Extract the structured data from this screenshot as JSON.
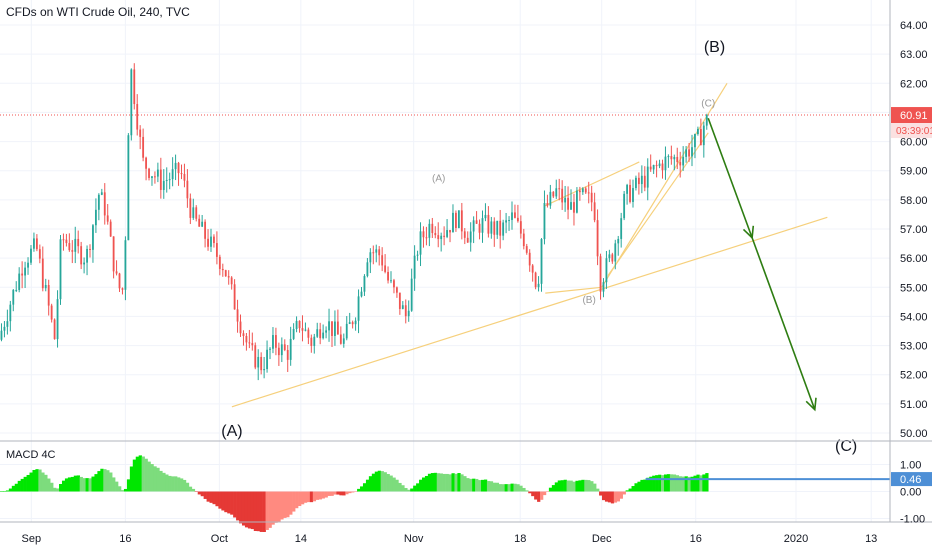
{
  "header": {
    "title": "CFDs on WTI Crude Oil, 240, TVC"
  },
  "macd": {
    "title": "MACD 4C",
    "value_label": "0.46",
    "axis_ticks": [
      "1.00",
      "0.00",
      "-1.00"
    ],
    "axis_values": [
      1.0,
      0.0,
      -1.0
    ],
    "value": 0.46
  },
  "price_axis": {
    "ticks": [
      "64.00",
      "63.00",
      "62.00",
      "61.00",
      "60.00",
      "59.00",
      "58.00",
      "57.00",
      "56.00",
      "55.00",
      "54.00",
      "53.00",
      "52.00",
      "51.00",
      "50.00"
    ],
    "last_price": "60.91",
    "countdown": "03:39:01"
  },
  "time_axis": {
    "labels": [
      "Sep",
      "16",
      "Oct",
      "14",
      "Nov",
      "18",
      "Dec",
      "16",
      "2020",
      "13"
    ]
  },
  "annotations": {
    "big_a": "(A)",
    "big_b": "(B)",
    "big_c": "(C)",
    "small_a": "(A)",
    "small_b": "(B)",
    "small_c": "(C)"
  },
  "colors": {
    "up": "#26a69a",
    "down": "#ef5350",
    "trendline": "#f6d07c",
    "arrow": "#2e7d12",
    "price_line": "#ef5350",
    "macd_up": "#00e600",
    "macd_down": "#e53935",
    "macd_level": "#4d8fd6",
    "axis_text": "#131722"
  },
  "chart_data": {
    "type": "candlestick",
    "title": "CFDs on WTI Crude Oil, 240, TVC",
    "y_axis": {
      "min": 50.0,
      "max": 64.0,
      "unit": "USD"
    },
    "x_axis": {
      "start": "2019-08-27",
      "end": "2020-01-16",
      "labels": [
        "Sep",
        "16",
        "Oct",
        "14",
        "Nov",
        "18",
        "Dec",
        "16",
        "2020",
        "13"
      ]
    },
    "price_path": [
      [
        "2019-08-27",
        53.2
      ],
      [
        "2019-08-31",
        55.9
      ],
      [
        "2019-09-02",
        56.4
      ],
      [
        "2019-09-04",
        54.3
      ],
      [
        "2019-09-05",
        53.2
      ],
      [
        "2019-09-06",
        56.7
      ],
      [
        "2019-09-10",
        56.0
      ],
      [
        "2019-09-12",
        58.2
      ],
      [
        "2019-09-13",
        57.7
      ],
      [
        "2019-09-15",
        55.0
      ],
      [
        "2019-09-16",
        54.9
      ],
      [
        "2019-09-17",
        62.7
      ],
      [
        "2019-09-18",
        61.0
      ],
      [
        "2019-09-19",
        59.3
      ],
      [
        "2019-09-22",
        58.6
      ],
      [
        "2019-09-25",
        59.0
      ],
      [
        "2019-09-27",
        57.4
      ],
      [
        "2019-09-30",
        56.4
      ],
      [
        "2019-10-02",
        55.7
      ],
      [
        "2019-10-04",
        54.2
      ],
      [
        "2019-10-06",
        52.8
      ],
      [
        "2019-10-08",
        52.3
      ],
      [
        "2019-10-10",
        53.1
      ],
      [
        "2019-10-12",
        52.7
      ],
      [
        "2019-10-14",
        53.8
      ],
      [
        "2019-10-16",
        53.1
      ],
      [
        "2019-10-18",
        53.9
      ],
      [
        "2019-10-21",
        53.1
      ],
      [
        "2019-10-23",
        54.2
      ],
      [
        "2019-10-25",
        56.3
      ],
      [
        "2019-10-27",
        56.1
      ],
      [
        "2019-10-28",
        55.3
      ],
      [
        "2019-10-31",
        54.0
      ],
      [
        "2019-11-02",
        56.5
      ],
      [
        "2019-11-04",
        57.2
      ],
      [
        "2019-11-06",
        56.9
      ],
      [
        "2019-11-08",
        57.4
      ],
      [
        "2019-11-10",
        56.8
      ],
      [
        "2019-11-12",
        57.2
      ],
      [
        "2019-11-15",
        56.9
      ],
      [
        "2019-11-17",
        57.4
      ],
      [
        "2019-11-19",
        56.6
      ],
      [
        "2019-11-21",
        55.0
      ],
      [
        "2019-11-22",
        57.6
      ],
      [
        "2019-11-24",
        58.3
      ],
      [
        "2019-11-26",
        57.7
      ],
      [
        "2019-11-28",
        58.1
      ],
      [
        "2019-11-30",
        57.9
      ],
      [
        "2019-12-01",
        55.2
      ],
      [
        "2019-12-03",
        56.2
      ],
      [
        "2019-12-05",
        58.1
      ],
      [
        "2019-12-07",
        58.5
      ],
      [
        "2019-12-09",
        58.9
      ],
      [
        "2019-12-11",
        59.3
      ],
      [
        "2019-12-14",
        59.5
      ],
      [
        "2019-12-16",
        59.9
      ],
      [
        "2019-12-17",
        60.2
      ],
      [
        "2019-12-18",
        60.9
      ]
    ],
    "candle_count": 240,
    "swing_points": [
      {
        "label": "(A)",
        "date": "2019-10-03",
        "price": 50.9
      },
      {
        "label": "(B)",
        "date": "2019-12-19",
        "price": 63.0
      },
      {
        "label": "(A)",
        "date": "2019-11-05",
        "price": 58.6
      },
      {
        "label": "(B)",
        "date": "2019-11-29",
        "price": 54.9
      },
      {
        "label": "(C)",
        "date": "2019-12-18",
        "price": 61.1
      },
      {
        "label": "(C)",
        "date": "2020-01-09",
        "price": 49.8
      }
    ],
    "trendlines": [
      {
        "from": [
          "2019-10-03",
          50.9
        ],
        "to": [
          "2020-01-06",
          57.4
        ]
      },
      {
        "from": [
          "2019-11-22",
          54.8
        ],
        "to": [
          "2019-12-01",
          55.0
        ]
      },
      {
        "from": [
          "2019-11-22",
          57.8
        ],
        "to": [
          "2019-12-07",
          59.3
        ]
      },
      {
        "from": [
          "2019-12-01",
          55.0
        ],
        "to": [
          "2019-12-21",
          62.0
        ]
      },
      {
        "from": [
          "2019-12-02",
          55.4
        ],
        "to": [
          "2019-12-18",
          60.3
        ]
      }
    ],
    "projection_arrows": [
      {
        "from": [
          "2019-12-18",
          60.8
        ],
        "to": [
          "2019-12-25",
          56.7
        ]
      },
      {
        "from": [
          "2019-12-25",
          56.7
        ],
        "to": [
          "2020-01-04",
          50.8
        ]
      }
    ],
    "last_price": 60.91
  }
}
